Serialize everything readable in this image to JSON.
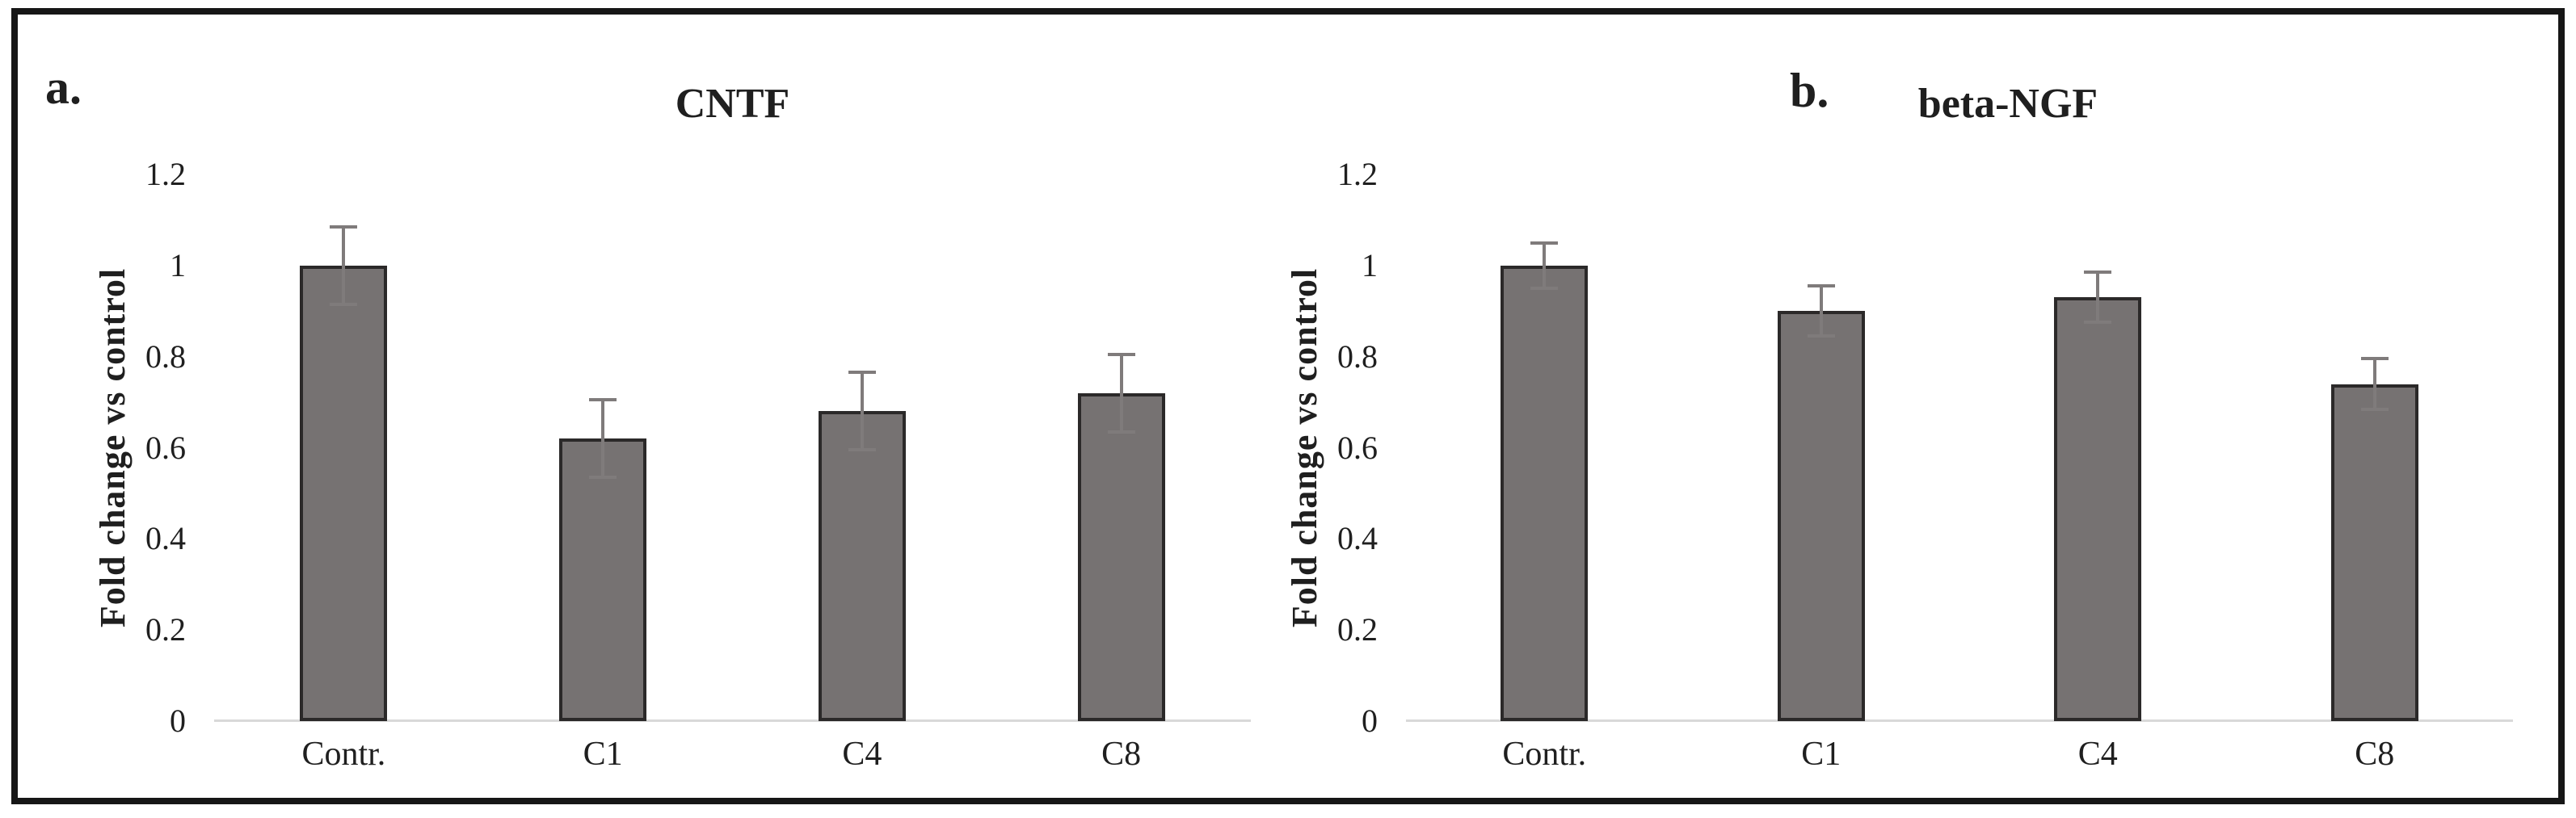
{
  "figure": {
    "background": "#ffffff",
    "frame_border_color": "#161616",
    "text_color": "#1f1f1f"
  },
  "chart_data": [
    {
      "type": "bar",
      "panel": "a.",
      "title": "CNTF",
      "ylabel": "Fold change vs control",
      "xlabel": "",
      "categories": [
        "Contr.",
        "C1",
        "C4",
        "C8"
      ],
      "values": [
        1.0,
        0.62,
        0.68,
        0.72
      ],
      "errors": [
        0.085,
        0.085,
        0.085,
        0.085
      ],
      "yticks": [
        "0",
        "0.2",
        "0.4",
        "0.6",
        "0.8",
        "1",
        "1.2"
      ],
      "ylim": [
        0,
        1.2
      ],
      "grid": false,
      "legend": "none",
      "bar_fill": "#767272",
      "bar_border": "#2b2929",
      "error_color": "#7f7b7b",
      "axis_line_color": "#d9d9d9"
    },
    {
      "type": "bar",
      "panel": "b.",
      "title": "beta-NGF",
      "ylabel": "Fold change vs control",
      "xlabel": "",
      "categories": [
        "Contr.",
        "C1",
        "C4",
        "C8"
      ],
      "values": [
        1.0,
        0.9,
        0.93,
        0.74
      ],
      "errors": [
        0.05,
        0.055,
        0.055,
        0.055
      ],
      "yticks": [
        "0",
        "0.2",
        "0.4",
        "0.6",
        "0.8",
        "1",
        "1.2"
      ],
      "ylim": [
        0,
        1.2
      ],
      "grid": false,
      "legend": "none",
      "bar_fill": "#767272",
      "bar_border": "#2b2929",
      "error_color": "#7f7b7b",
      "axis_line_color": "#d9d9d9"
    }
  ]
}
